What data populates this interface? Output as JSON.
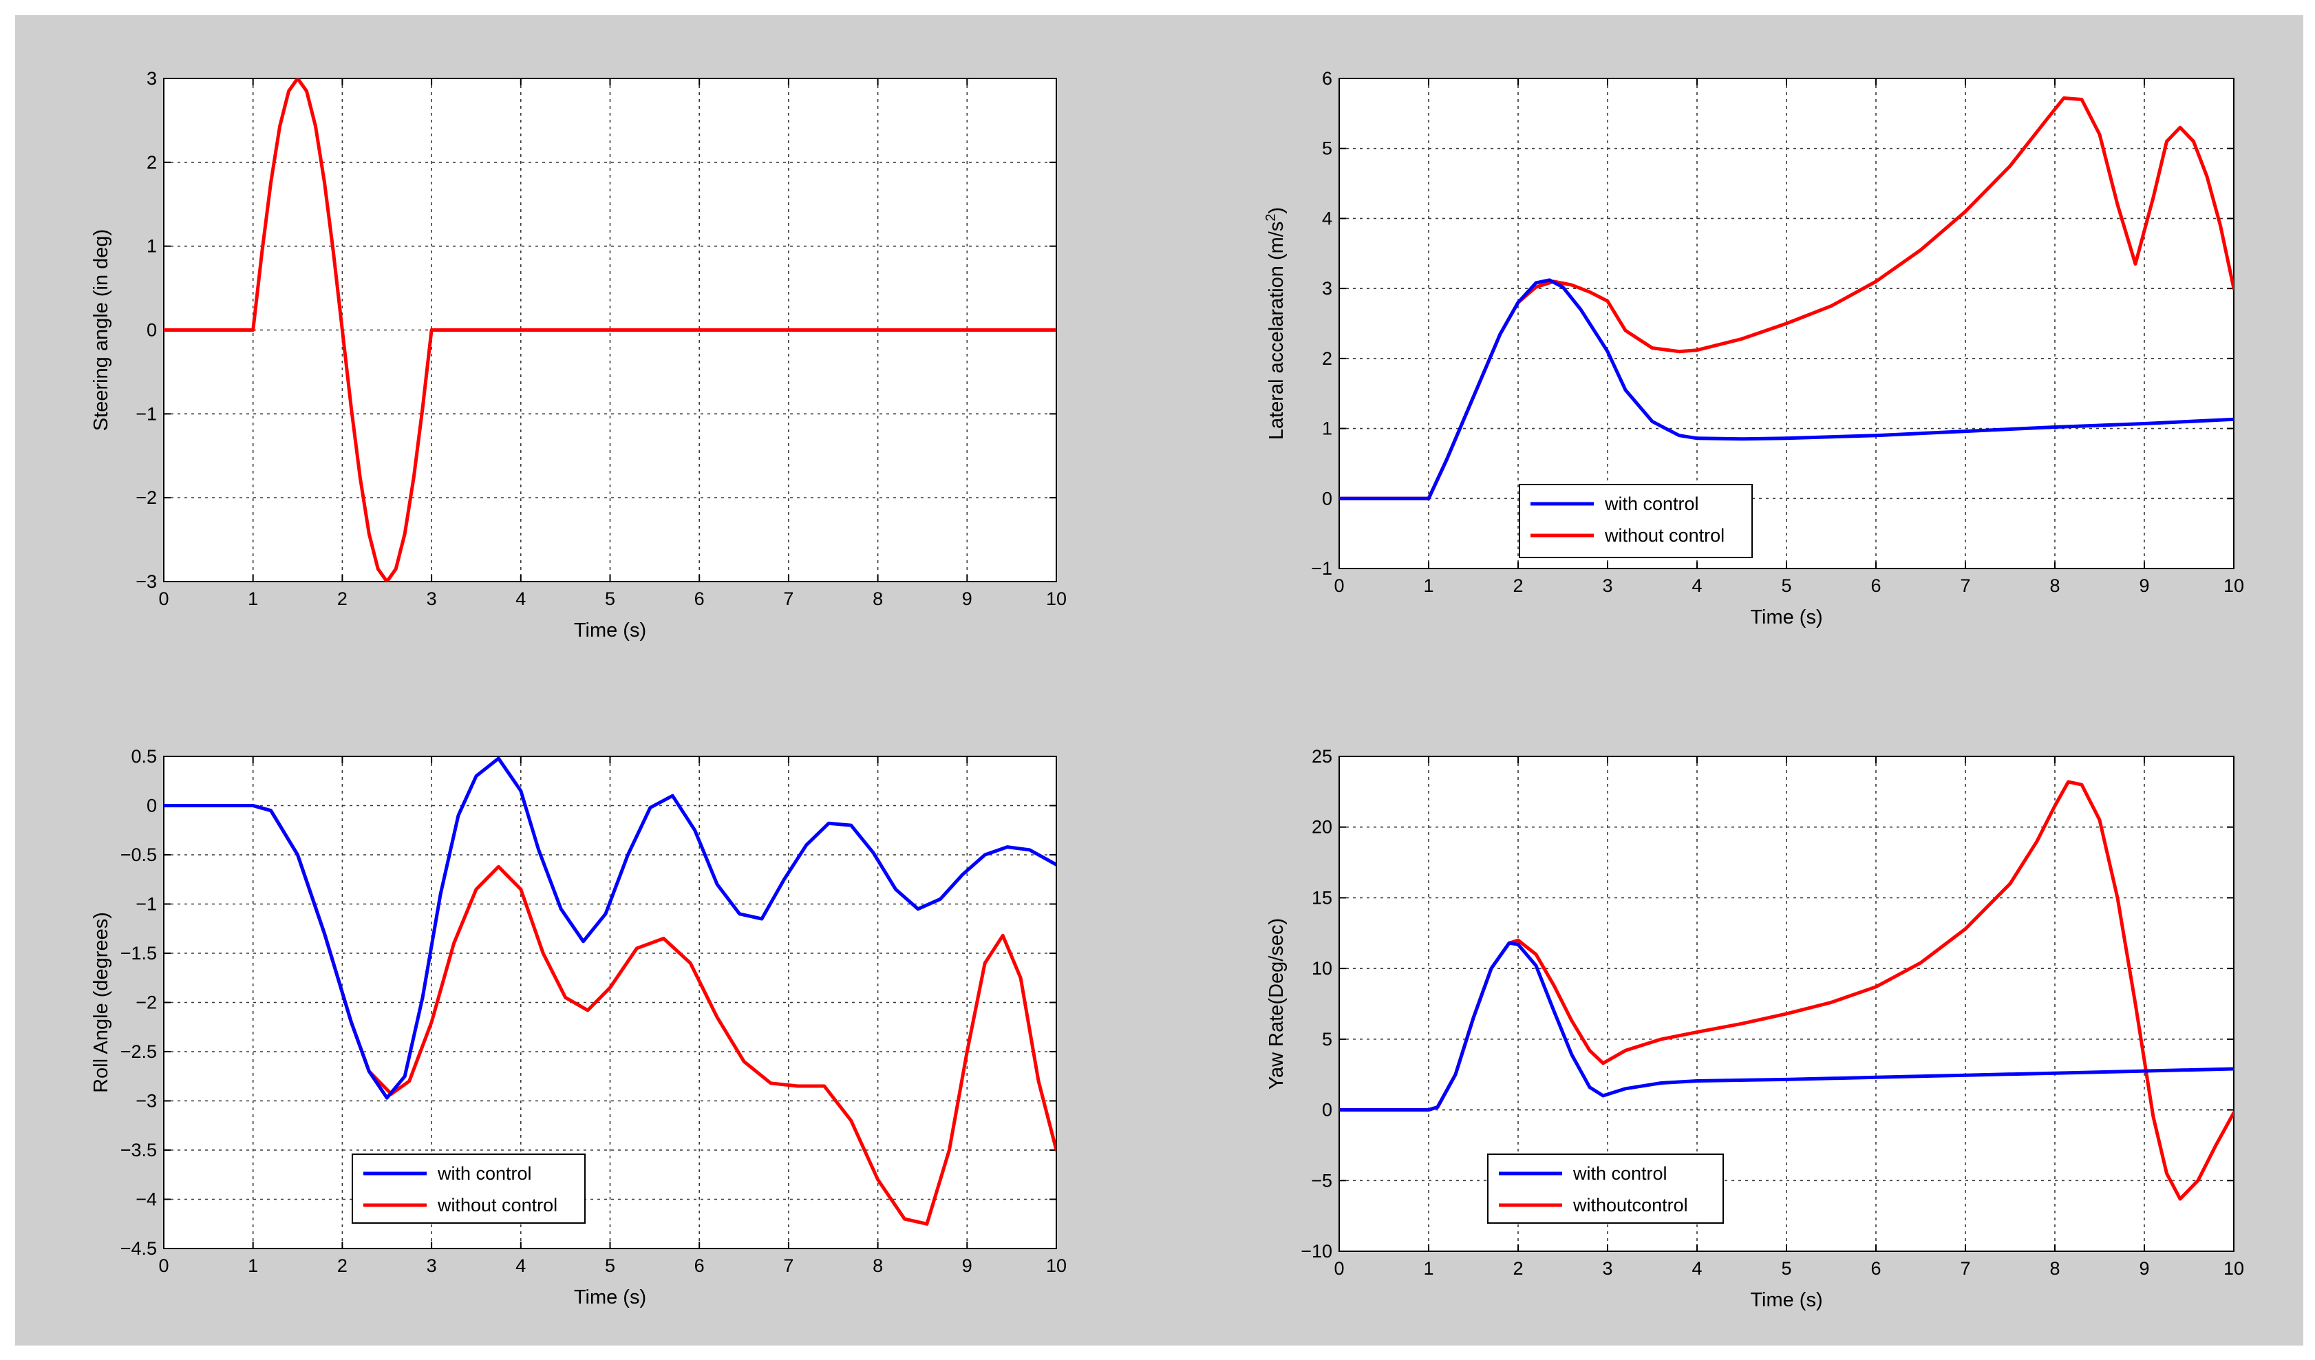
{
  "chart_data": [
    {
      "type": "line",
      "xlabel": "Time (s)",
      "ylabel": "Steering angle (in deg)",
      "xlim": [
        0,
        10
      ],
      "ylim": [
        -3,
        3
      ],
      "xticks": [
        0,
        1,
        2,
        3,
        4,
        5,
        6,
        7,
        8,
        9,
        10
      ],
      "yticks": [
        -3,
        -2,
        -1,
        0,
        1,
        2,
        3
      ],
      "grid": true,
      "legend": null,
      "series": [
        {
          "color": "#ff0000",
          "x": [
            0,
            1,
            1.1,
            1.2,
            1.3,
            1.4,
            1.5,
            1.6,
            1.7,
            1.8,
            1.9,
            2,
            2.1,
            2.2,
            2.3,
            2.4,
            2.5,
            2.6,
            2.7,
            2.8,
            2.9,
            3,
            10
          ],
          "y": [
            0,
            0,
            0.93,
            1.76,
            2.43,
            2.85,
            3,
            2.85,
            2.43,
            1.76,
            0.93,
            0,
            -0.93,
            -1.76,
            -2.43,
            -2.85,
            -3,
            -2.85,
            -2.43,
            -1.76,
            -0.93,
            0,
            0
          ]
        }
      ]
    },
    {
      "type": "line",
      "xlabel": "Time (s)",
      "ylabel": "Lateral accelaration (m/s",
      "ylabel_sup": "2",
      "ylabel_end": ")",
      "xlim": [
        0,
        10
      ],
      "ylim": [
        -1,
        6
      ],
      "xticks": [
        0,
        1,
        2,
        3,
        4,
        5,
        6,
        7,
        8,
        9,
        10
      ],
      "yticks": [
        -1,
        0,
        1,
        2,
        3,
        4,
        5,
        6
      ],
      "grid": true,
      "legend": "bottom-left",
      "series": [
        {
          "name": "with control",
          "color": "#0000ff",
          "x": [
            0,
            1,
            1.2,
            1.4,
            1.6,
            1.8,
            2,
            2.2,
            2.35,
            2.5,
            2.7,
            2.9,
            3,
            3.2,
            3.5,
            3.8,
            4,
            4.5,
            5,
            6,
            7,
            8,
            9,
            10
          ],
          "y": [
            0,
            0,
            0.55,
            1.15,
            1.75,
            2.35,
            2.8,
            3.08,
            3.12,
            3.02,
            2.7,
            2.3,
            2.1,
            1.55,
            1.1,
            0.9,
            0.86,
            0.85,
            0.86,
            0.9,
            0.96,
            1.02,
            1.07,
            1.13
          ]
        },
        {
          "name": "without control",
          "color": "#ff0000",
          "x": [
            0,
            1,
            1.2,
            1.4,
            1.6,
            1.8,
            2,
            2.2,
            2.4,
            2.6,
            2.8,
            3,
            3.2,
            3.5,
            3.8,
            4,
            4.5,
            5,
            5.5,
            6,
            6.5,
            7,
            7.5,
            7.9,
            8.1,
            8.3,
            8.5,
            8.7,
            8.9,
            9.1,
            9.25,
            9.4,
            9.55,
            9.7,
            9.85,
            10
          ],
          "y": [
            0,
            0,
            0.55,
            1.15,
            1.75,
            2.35,
            2.8,
            3.02,
            3.1,
            3.05,
            2.95,
            2.82,
            2.4,
            2.15,
            2.1,
            2.12,
            2.28,
            2.5,
            2.75,
            3.1,
            3.55,
            4.1,
            4.75,
            5.4,
            5.72,
            5.7,
            5.2,
            4.2,
            3.35,
            4.3,
            5.1,
            5.3,
            5.1,
            4.6,
            3.9,
            3.0
          ]
        }
      ]
    },
    {
      "type": "line",
      "xlabel": "Time (s)",
      "ylabel": "Roll Angle (degrees)",
      "xlim": [
        0,
        10
      ],
      "ylim": [
        -4.5,
        0.5
      ],
      "xticks": [
        0,
        1,
        2,
        3,
        4,
        5,
        6,
        7,
        8,
        9,
        10
      ],
      "yticks": [
        -4.5,
        -4,
        -3.5,
        -3,
        -2.5,
        -2,
        -1.5,
        -1,
        -0.5,
        0,
        0.5
      ],
      "grid": true,
      "legend": "bottom-left",
      "series": [
        {
          "name": "with control",
          "color": "#0000ff",
          "x": [
            0,
            1,
            1.2,
            1.5,
            1.8,
            2.1,
            2.3,
            2.5,
            2.7,
            2.9,
            3.1,
            3.3,
            3.5,
            3.75,
            4,
            4.2,
            4.45,
            4.7,
            4.95,
            5.2,
            5.45,
            5.7,
            5.95,
            6.2,
            6.45,
            6.7,
            6.95,
            7.2,
            7.45,
            7.7,
            7.95,
            8.2,
            8.45,
            8.7,
            8.95,
            9.2,
            9.45,
            9.7,
            10
          ],
          "y": [
            0,
            0,
            -0.05,
            -0.5,
            -1.3,
            -2.2,
            -2.7,
            -2.97,
            -2.75,
            -1.95,
            -0.9,
            -0.1,
            0.3,
            0.48,
            0.15,
            -0.45,
            -1.05,
            -1.38,
            -1.1,
            -0.5,
            -0.02,
            0.1,
            -0.25,
            -0.8,
            -1.1,
            -1.15,
            -0.75,
            -0.4,
            -0.18,
            -0.2,
            -0.48,
            -0.85,
            -1.05,
            -0.95,
            -0.7,
            -0.5,
            -0.42,
            -0.45,
            -0.6
          ]
        },
        {
          "name": "without control",
          "color": "#ff0000",
          "x": [
            0,
            1,
            1.2,
            1.5,
            1.8,
            2.1,
            2.3,
            2.55,
            2.75,
            3,
            3.25,
            3.5,
            3.75,
            4,
            4.25,
            4.5,
            4.75,
            5,
            5.3,
            5.6,
            5.9,
            6.2,
            6.5,
            6.8,
            7.1,
            7.4,
            7.7,
            8,
            8.3,
            8.55,
            8.8,
            9.0,
            9.2,
            9.4,
            9.6,
            9.8,
            10
          ],
          "y": [
            0,
            0,
            -0.05,
            -0.5,
            -1.3,
            -2.2,
            -2.7,
            -2.93,
            -2.8,
            -2.2,
            -1.4,
            -0.85,
            -0.62,
            -0.85,
            -1.5,
            -1.95,
            -2.08,
            -1.85,
            -1.45,
            -1.35,
            -1.6,
            -2.15,
            -2.6,
            -2.82,
            -2.85,
            -2.85,
            -3.2,
            -3.8,
            -4.2,
            -4.25,
            -3.5,
            -2.5,
            -1.6,
            -1.32,
            -1.75,
            -2.8,
            -3.5
          ]
        }
      ]
    },
    {
      "type": "line",
      "xlabel": "Time (s)",
      "ylabel": "Yaw Rate(Deg/sec)",
      "xlim": [
        0,
        10
      ],
      "ylim": [
        -10,
        25
      ],
      "xticks": [
        0,
        1,
        2,
        3,
        4,
        5,
        6,
        7,
        8,
        9,
        10
      ],
      "yticks": [
        -10,
        -5,
        0,
        5,
        10,
        15,
        20,
        25
      ],
      "grid": true,
      "legend": "bottom-left",
      "series": [
        {
          "name": "with control",
          "color": "#0000ff",
          "x": [
            0,
            1,
            1.1,
            1.3,
            1.5,
            1.7,
            1.9,
            2,
            2.2,
            2.4,
            2.6,
            2.8,
            2.95,
            3.2,
            3.6,
            4,
            5,
            6,
            7,
            8,
            9,
            10
          ],
          "y": [
            0,
            0,
            0.2,
            2.5,
            6.5,
            10,
            11.8,
            11.7,
            10.2,
            7,
            3.9,
            1.6,
            1,
            1.5,
            1.9,
            2.05,
            2.15,
            2.3,
            2.45,
            2.6,
            2.75,
            2.9
          ]
        },
        {
          "name": "withoutcontrol",
          "color": "#ff0000",
          "x": [
            0,
            1,
            1.1,
            1.3,
            1.5,
            1.7,
            1.9,
            2,
            2.2,
            2.4,
            2.6,
            2.8,
            2.95,
            3.2,
            3.6,
            4,
            4.5,
            5,
            5.5,
            6,
            6.5,
            7,
            7.5,
            7.8,
            8.0,
            8.15,
            8.3,
            8.5,
            8.7,
            8.9,
            9.1,
            9.25,
            9.4,
            9.6,
            9.8,
            10
          ],
          "y": [
            0,
            0,
            0.2,
            2.5,
            6.5,
            10,
            11.8,
            12,
            11,
            8.8,
            6.3,
            4.2,
            3.3,
            4.2,
            5,
            5.5,
            6.1,
            6.8,
            7.6,
            8.7,
            10.4,
            12.8,
            16,
            19,
            21.5,
            23.2,
            23,
            20.5,
            15,
            7.5,
            -0.5,
            -4.5,
            -6.3,
            -5,
            -2.5,
            -0.2
          ]
        }
      ]
    }
  ]
}
